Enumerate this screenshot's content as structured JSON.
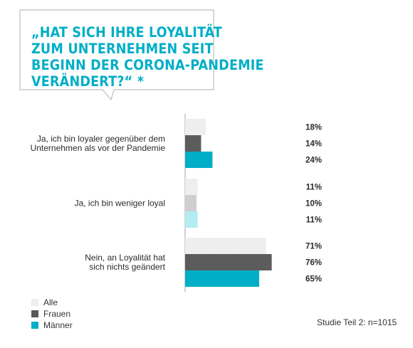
{
  "header": {
    "title_lines": [
      "„HAT SICH IHRE LOYALITÄT",
      "ZUM UNTERNEHMEN SEIT",
      "BEGINN DER CORONA-PANDEMIE",
      "VERÄNDERT?“ *"
    ]
  },
  "colors": {
    "accent": "#00aec7",
    "alle": "#eeeeee",
    "frauen": "#595959",
    "maenner": "#00aec7"
  },
  "chart_data": {
    "type": "bar",
    "orientation": "horizontal",
    "categories": [
      [
        "Ja, ich bin loyaler gegenüber dem",
        "Unternehmen als vor der Pandemie"
      ],
      [
        "Ja, ich bin weniger loyal"
      ],
      [
        "Nein, an Loyalität hat",
        "sich nichts geändert"
      ]
    ],
    "series": [
      {
        "name": "Alle",
        "values": [
          18,
          11,
          71
        ],
        "labels": [
          "18%",
          "11%",
          "71%"
        ]
      },
      {
        "name": "Frauen",
        "values": [
          14,
          10,
          76
        ],
        "labels": [
          "14%",
          "10%",
          "76%"
        ]
      },
      {
        "name": "Männer",
        "values": [
          24,
          11,
          65
        ],
        "labels": [
          "24%",
          "11%",
          "65%"
        ]
      }
    ],
    "group_overrides": {
      "1": {
        "Frauen": "#cfcfcf",
        "Männer": "#b3ecf3"
      }
    },
    "xlim": [
      0,
      100
    ],
    "legend": {
      "placement": "bottom-left",
      "items": [
        "Alle",
        "Frauen",
        "Männer"
      ]
    }
  },
  "footer": {
    "note": "Studie Teil 2: n=1015"
  }
}
